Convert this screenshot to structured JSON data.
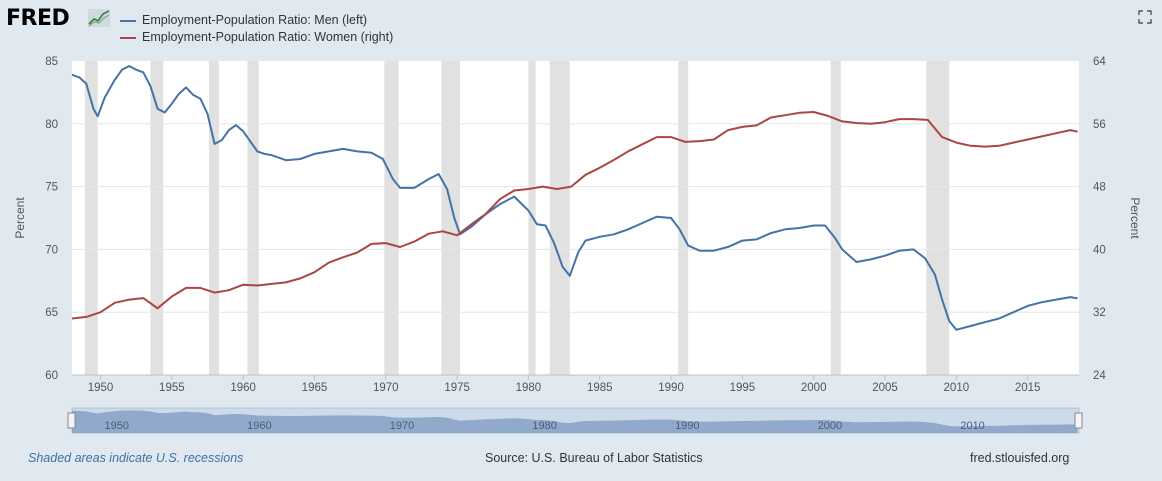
{
  "header": {
    "logo": "FRED",
    "logo_icon": "chart-line-icon",
    "fullscreen_icon": "fullscreen-icon"
  },
  "legend": [
    {
      "label": "Employment-Population Ratio: Men (left)",
      "color": "#4572a7"
    },
    {
      "label": "Employment-Population Ratio: Women (right)",
      "color": "#aa4643"
    }
  ],
  "footer": {
    "note": "Shaded areas indicate U.S. recessions",
    "source": "Source: U.S. Bureau of Labor Statistics",
    "url": "fred.stlouisfed.org"
  },
  "chart_data": {
    "type": "line",
    "xlabel": "",
    "ylabel_left": "Percent",
    "ylabel_right": "Percent",
    "xlim": [
      1948.0,
      2018.6
    ],
    "ylim_left": [
      60,
      85
    ],
    "ylim_right": [
      24,
      64
    ],
    "x_ticks": [
      1950,
      1955,
      1960,
      1965,
      1970,
      1975,
      1980,
      1985,
      1990,
      1995,
      2000,
      2005,
      2010,
      2015
    ],
    "y_ticks_left": [
      60,
      65,
      70,
      75,
      80,
      85
    ],
    "y_ticks_right": [
      24,
      32,
      40,
      48,
      56,
      64
    ],
    "grid": true,
    "recessions": [
      [
        1948.9,
        1949.8
      ],
      [
        1953.5,
        1954.4
      ],
      [
        1957.6,
        1958.3
      ],
      [
        1960.3,
        1961.1
      ],
      [
        1969.9,
        1970.9
      ],
      [
        1973.9,
        1975.2
      ],
      [
        1980.0,
        1980.5
      ],
      [
        1981.5,
        1982.9
      ],
      [
        1990.5,
        1991.2
      ],
      [
        2001.2,
        2001.9
      ],
      [
        2007.9,
        2009.5
      ]
    ],
    "navigator_labels": [
      "1950",
      "1960",
      "1970",
      "1980",
      "1990",
      "2000",
      "2010"
    ],
    "series": [
      {
        "name": "Employment-Population Ratio: Men (left)",
        "axis": "left",
        "color": "#4572a7",
        "x": [
          1948.0,
          1948.5,
          1949.0,
          1949.5,
          1949.8,
          1950.3,
          1951.0,
          1951.5,
          1952.0,
          1952.5,
          1953.0,
          1953.5,
          1954.0,
          1954.5,
          1955.0,
          1955.5,
          1956.0,
          1956.5,
          1957.0,
          1957.5,
          1958.0,
          1958.5,
          1959.0,
          1959.5,
          1960.0,
          1960.5,
          1961.0,
          1961.5,
          1962.0,
          1963.0,
          1964.0,
          1965.0,
          1966.0,
          1967.0,
          1968.0,
          1969.0,
          1969.8,
          1970.5,
          1971.0,
          1972.0,
          1973.0,
          1973.7,
          1974.3,
          1974.8,
          1975.2,
          1976.0,
          1977.0,
          1978.0,
          1979.0,
          1980.0,
          1980.6,
          1981.2,
          1981.8,
          1982.4,
          1982.9,
          1983.5,
          1984.0,
          1985.0,
          1986.0,
          1987.0,
          1988.0,
          1989.0,
          1990.0,
          1990.6,
          1991.2,
          1992.0,
          1993.0,
          1994.0,
          1995.0,
          1996.0,
          1997.0,
          1998.0,
          1999.0,
          2000.0,
          2000.8,
          2001.5,
          2002.0,
          2002.5,
          2003.0,
          2004.0,
          2005.0,
          2006.0,
          2007.0,
          2007.8,
          2008.5,
          2009.0,
          2009.5,
          2010.0,
          2011.0,
          2012.0,
          2013.0,
          2014.0,
          2015.0,
          2016.0,
          2017.0,
          2018.0,
          2018.5
        ],
        "values": [
          83.9,
          83.7,
          83.2,
          81.2,
          80.6,
          82.1,
          83.5,
          84.3,
          84.6,
          84.3,
          84.1,
          83.0,
          81.2,
          80.9,
          81.6,
          82.4,
          82.9,
          82.3,
          82.0,
          80.8,
          78.4,
          78.7,
          79.5,
          79.9,
          79.4,
          78.6,
          77.8,
          77.6,
          77.5,
          77.1,
          77.2,
          77.6,
          77.8,
          78.0,
          77.8,
          77.7,
          77.2,
          75.6,
          74.9,
          74.9,
          75.6,
          76.0,
          74.8,
          72.5,
          71.2,
          71.8,
          72.8,
          73.6,
          74.2,
          73.1,
          72.0,
          71.9,
          70.5,
          68.6,
          67.9,
          69.8,
          70.7,
          71.0,
          71.2,
          71.6,
          72.1,
          72.6,
          72.5,
          71.6,
          70.3,
          69.9,
          69.9,
          70.2,
          70.7,
          70.8,
          71.3,
          71.6,
          71.7,
          71.9,
          71.9,
          70.9,
          70.0,
          69.5,
          69.0,
          69.2,
          69.5,
          69.9,
          70.0,
          69.3,
          68.0,
          66.0,
          64.3,
          63.6,
          63.9,
          64.2,
          64.5,
          65.0,
          65.5,
          65.8,
          66.0,
          66.2,
          66.1
        ]
      },
      {
        "name": "Employment-Population Ratio: Women (right)",
        "axis": "right",
        "color": "#aa4643",
        "x": [
          1948.0,
          1949.0,
          1950.0,
          1951.0,
          1952.0,
          1953.0,
          1954.0,
          1955.0,
          1956.0,
          1957.0,
          1958.0,
          1959.0,
          1960.0,
          1961.0,
          1962.0,
          1963.0,
          1964.0,
          1965.0,
          1966.0,
          1967.0,
          1968.0,
          1969.0,
          1970.0,
          1971.0,
          1972.0,
          1973.0,
          1974.0,
          1975.0,
          1976.0,
          1977.0,
          1978.0,
          1979.0,
          1980.0,
          1981.0,
          1982.0,
          1983.0,
          1984.0,
          1985.0,
          1986.0,
          1987.0,
          1988.0,
          1989.0,
          1990.0,
          1991.0,
          1992.0,
          1993.0,
          1994.0,
          1995.0,
          1996.0,
          1997.0,
          1998.0,
          1999.0,
          2000.0,
          2001.0,
          2002.0,
          2003.0,
          2004.0,
          2005.0,
          2006.0,
          2007.0,
          2008.0,
          2009.0,
          2010.0,
          2011.0,
          2012.0,
          2013.0,
          2014.0,
          2015.0,
          2016.0,
          2017.0,
          2018.0,
          2018.5
        ],
        "values": [
          31.2,
          31.4,
          32.0,
          33.2,
          33.6,
          33.8,
          32.5,
          34.0,
          35.1,
          35.1,
          34.5,
          34.8,
          35.5,
          35.4,
          35.6,
          35.8,
          36.3,
          37.1,
          38.3,
          39.0,
          39.6,
          40.7,
          40.8,
          40.3,
          41.0,
          42.0,
          42.3,
          41.8,
          43.2,
          44.5,
          46.4,
          47.5,
          47.7,
          48.0,
          47.7,
          48.0,
          49.5,
          50.4,
          51.4,
          52.5,
          53.4,
          54.3,
          54.3,
          53.7,
          53.8,
          54.0,
          55.2,
          55.6,
          55.8,
          56.8,
          57.1,
          57.4,
          57.5,
          57.0,
          56.3,
          56.1,
          56.0,
          56.2,
          56.6,
          56.6,
          56.5,
          54.3,
          53.6,
          53.2,
          53.1,
          53.2,
          53.6,
          54.0,
          54.4,
          54.8,
          55.2,
          55.0
        ]
      }
    ]
  }
}
